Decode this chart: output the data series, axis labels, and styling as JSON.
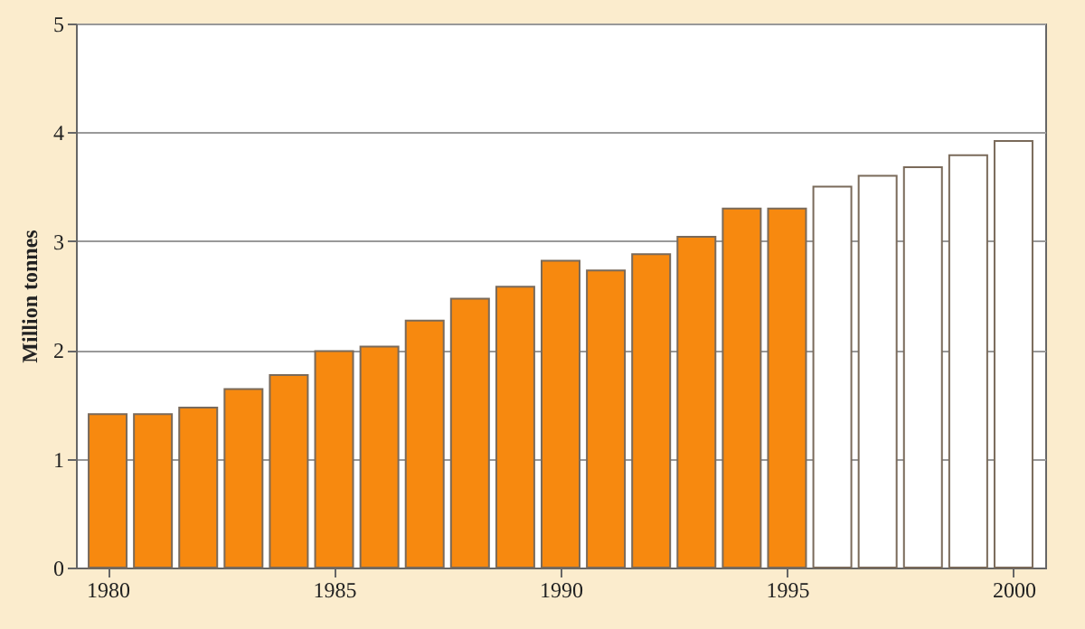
{
  "chart_data": {
    "type": "bar",
    "ylabel": "Million tonnes",
    "xlim": [
      1979.5,
      2000.5
    ],
    "xticks": [
      1980,
      1985,
      1990,
      1995,
      2000
    ],
    "ylim": [
      0,
      5
    ],
    "yticks": [
      0,
      1,
      2,
      3,
      4,
      5
    ],
    "grid": "y",
    "series": [
      {
        "color": "#f7890f",
        "x": [
          1980,
          1981,
          1982,
          1983,
          1984,
          1985,
          1986,
          1987,
          1988,
          1989,
          1990,
          1991,
          1992,
          1993,
          1994,
          1995
        ],
        "values": [
          1.41,
          1.41,
          1.47,
          1.64,
          1.77,
          1.99,
          2.03,
          2.27,
          2.47,
          2.58,
          2.82,
          2.73,
          2.88,
          3.04,
          3.3,
          3.3
        ]
      },
      {
        "color": "#ffffff",
        "x": [
          1996,
          1997,
          1998,
          1999,
          2000
        ],
        "values": [
          3.5,
          3.6,
          3.68,
          3.79,
          3.92
        ]
      }
    ]
  }
}
